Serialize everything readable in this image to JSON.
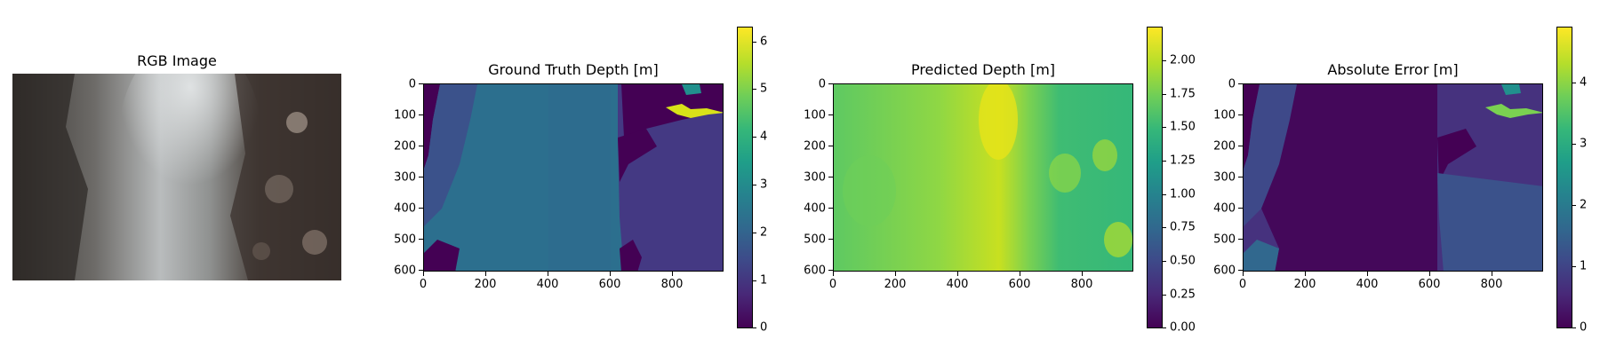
{
  "chart_data": [
    {
      "type": "image",
      "title": "RGB Image",
      "axes_visible": false
    },
    {
      "type": "heatmap",
      "title": "Ground Truth Depth [m]",
      "colormap": "viridis",
      "xticks": [
        0,
        200,
        400,
        600,
        800
      ],
      "yticks": [
        0,
        100,
        200,
        300,
        400,
        500,
        600
      ],
      "xlim": [
        0,
        968
      ],
      "ylim": [
        608,
        0
      ],
      "colorbar": {
        "ticks": [
          0,
          1,
          2,
          3,
          4,
          5,
          6
        ],
        "labels": [
          "0",
          "1",
          "2",
          "3",
          "4",
          "5",
          "6"
        ],
        "range": [
          0,
          6.3
        ]
      }
    },
    {
      "type": "heatmap",
      "title": "Predicted Depth [m]",
      "colormap": "viridis",
      "xticks": [
        0,
        200,
        400,
        600,
        800
      ],
      "yticks": [
        0,
        100,
        200,
        300,
        400,
        500,
        600
      ],
      "xlim": [
        0,
        968
      ],
      "ylim": [
        608,
        0
      ],
      "colorbar": {
        "ticks": [
          0,
          0.25,
          0.5,
          0.75,
          1.0,
          1.25,
          1.5,
          1.75,
          2.0
        ],
        "labels": [
          "0.00",
          "0.25",
          "0.50",
          "0.75",
          "1.00",
          "1.25",
          "1.50",
          "1.75",
          "2.00"
        ],
        "range": [
          0,
          2.25
        ]
      }
    },
    {
      "type": "heatmap",
      "title": "Absolute Error [m]",
      "colormap": "viridis",
      "xticks": [
        0,
        200,
        400,
        600,
        800
      ],
      "yticks": [
        0,
        100,
        200,
        300,
        400,
        500,
        600
      ],
      "xlim": [
        0,
        968
      ],
      "ylim": [
        608,
        0
      ],
      "colorbar": {
        "ticks": [
          0,
          1,
          2,
          3,
          4
        ],
        "labels": [
          "0",
          "1",
          "2",
          "3",
          "4"
        ],
        "range": [
          0,
          4.9
        ]
      }
    }
  ]
}
